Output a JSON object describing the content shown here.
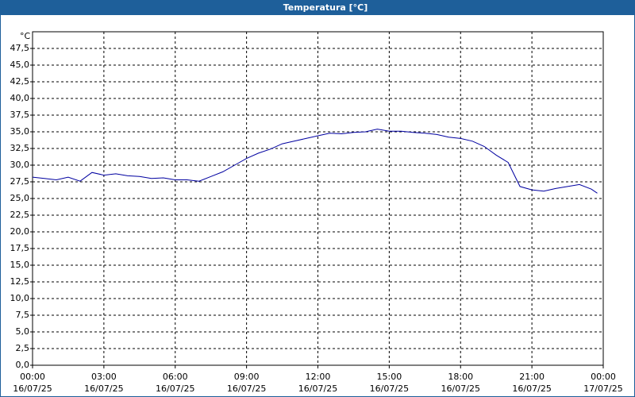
{
  "chart_data": {
    "type": "line",
    "title": "Temperatura [°C]",
    "y_unit": "°C",
    "x": [
      0,
      0.5,
      1,
      1.5,
      2,
      2.5,
      3,
      3.5,
      4,
      4.5,
      5,
      5.5,
      6,
      6.5,
      7,
      7.5,
      8,
      8.5,
      9,
      9.5,
      10,
      10.5,
      11,
      11.5,
      12,
      12.5,
      13,
      13.5,
      14,
      14.5,
      15,
      15.5,
      16,
      16.5,
      17,
      17.5,
      18,
      18.5,
      19,
      19.5,
      20,
      20.5,
      21,
      21.5,
      22,
      22.5,
      23,
      23.5,
      23.75
    ],
    "series": [
      {
        "name": "Temperatura",
        "color": "#0000a0",
        "values": [
          28.2,
          28.0,
          27.8,
          28.2,
          27.6,
          28.9,
          28.5,
          28.7,
          28.4,
          28.3,
          28.0,
          28.1,
          27.8,
          27.8,
          27.6,
          28.3,
          29.0,
          30.0,
          31.0,
          31.8,
          32.4,
          33.2,
          33.6,
          34.0,
          34.4,
          34.8,
          34.7,
          34.9,
          35.0,
          35.4,
          35.1,
          35.1,
          34.9,
          34.8,
          34.6,
          34.2,
          34.0,
          33.6,
          32.8,
          31.5,
          30.4,
          26.8,
          26.3,
          26.1,
          26.5,
          26.8,
          27.1,
          26.4,
          25.8
        ]
      }
    ],
    "xlim": [
      0,
      24
    ],
    "xticks": [
      {
        "value": 0,
        "label": "00:00"
      },
      {
        "value": 3,
        "label": "03:00"
      },
      {
        "value": 6,
        "label": "06:00"
      },
      {
        "value": 9,
        "label": "09:00"
      },
      {
        "value": 12,
        "label": "12:00"
      },
      {
        "value": 15,
        "label": "15:00"
      },
      {
        "value": 18,
        "label": "18:00"
      },
      {
        "value": 21,
        "label": "21:00"
      },
      {
        "value": 24,
        "label": "00:00"
      }
    ],
    "xtick_dates": [
      "16/07/25",
      "16/07/25",
      "16/07/25",
      "16/07/25",
      "16/07/25",
      "16/07/25",
      "16/07/25",
      "16/07/25",
      "17/07/25"
    ],
    "ylim": [
      0,
      50
    ],
    "yticks": [
      {
        "value": 0,
        "label": "0,0"
      },
      {
        "value": 2.5,
        "label": "2,5"
      },
      {
        "value": 5,
        "label": "5,0"
      },
      {
        "value": 7.5,
        "label": "7,5"
      },
      {
        "value": 10,
        "label": "10,0"
      },
      {
        "value": 12.5,
        "label": "12,5"
      },
      {
        "value": 15,
        "label": "15,0"
      },
      {
        "value": 17.5,
        "label": "17,5"
      },
      {
        "value": 20,
        "label": "20,0"
      },
      {
        "value": 22.5,
        "label": "22,5"
      },
      {
        "value": 25,
        "label": "25,0"
      },
      {
        "value": 27.5,
        "label": "27,5"
      },
      {
        "value": 30,
        "label": "30,0"
      },
      {
        "value": 32.5,
        "label": "32,5"
      },
      {
        "value": 35,
        "label": "35,0"
      },
      {
        "value": 37.5,
        "label": "37,5"
      },
      {
        "value": 40,
        "label": "40,0"
      },
      {
        "value": 42.5,
        "label": "42,5"
      },
      {
        "value": 45,
        "label": "45,0"
      },
      {
        "value": 47.5,
        "label": "47,5"
      }
    ],
    "grid": true
  }
}
